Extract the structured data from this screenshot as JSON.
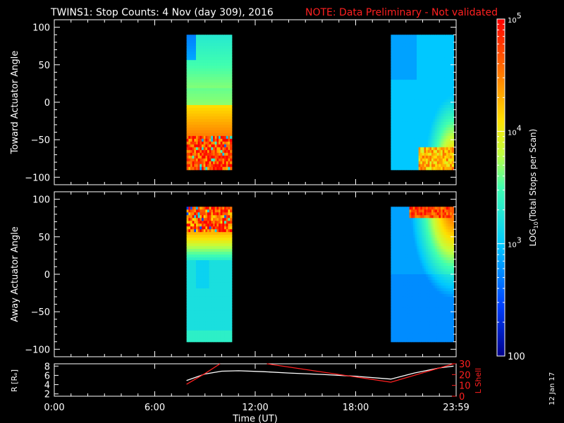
{
  "header": {
    "title": "TWINS1: Stop Counts:  4 Nov (day 309), 2016",
    "note": "NOTE: Data Preliminary - Not validated"
  },
  "side_date": "12 Jan 17",
  "colors": {
    "note": "#ff2020",
    "lshell": "#ff2020",
    "radius": "#ffffff"
  },
  "chart_data": [
    {
      "type": "heatmap",
      "ylabel": "Toward Actuator Angle",
      "ylim": [
        -110,
        110
      ],
      "yticks": [
        100,
        50,
        0,
        -50,
        -100
      ],
      "ytick_labels": [
        "100",
        "50",
        "0",
        "−50",
        "−100"
      ],
      "xlim": [
        0,
        24
      ],
      "segments": [
        {
          "x_start": 7.9,
          "x_end": 10.6
        },
        {
          "x_start": 20.1,
          "x_end": 23.85
        }
      ],
      "y_range": [
        -90,
        90
      ]
    },
    {
      "type": "heatmap",
      "ylabel": "Away Actuator Angle",
      "ylim": [
        -110,
        110
      ],
      "yticks": [
        100,
        50,
        0,
        -50,
        -100
      ],
      "ytick_labels": [
        "100",
        "50",
        "0",
        "−50",
        "−100"
      ],
      "xlim": [
        0,
        24
      ],
      "segments": [
        {
          "x_start": 7.9,
          "x_end": 10.6
        },
        {
          "x_start": 20.1,
          "x_end": 23.85
        }
      ],
      "y_range": [
        -90,
        90
      ]
    },
    {
      "type": "line",
      "ylabel_left": "R [Rₑ]",
      "ylabel_right": "L Shell",
      "xlabel": "Time (UT)",
      "xlim": [
        0,
        24
      ],
      "xticks": [
        0,
        6,
        12,
        18,
        24
      ],
      "xtick_labels": [
        "0:00",
        "6:00",
        "12:00",
        "18:00",
        "23:59"
      ],
      "ylim_left": [
        1.5,
        8.5
      ],
      "yticks_left": [
        2,
        4,
        6,
        8
      ],
      "ylim_right": [
        0,
        30
      ],
      "yticks_right": [
        0,
        10,
        20,
        30
      ],
      "series": [
        {
          "axis": "left",
          "x": [
            7.9,
            9.0,
            10.0,
            11.0,
            12.5,
            14.0,
            16.0,
            18.0,
            20.1,
            21.5,
            23.0,
            23.85
          ],
          "y": [
            4.9,
            6.3,
            6.9,
            7.0,
            6.8,
            6.5,
            6.2,
            5.8,
            5.2,
            6.5,
            7.6,
            8.0
          ]
        },
        {
          "axis": "right",
          "x": [
            7.9,
            9.0,
            9.9
          ],
          "y": [
            11,
            21,
            30
          ]
        },
        {
          "axis": "right",
          "x": [
            12.7,
            20.1,
            23.85
          ],
          "y": [
            30,
            13,
            30
          ]
        }
      ]
    },
    {
      "type": "heatmap-colorbar",
      "label_prefix": "LOG",
      "label_sub": "10",
      "label_suffix": "(Total Stops per Scan)",
      "range": [
        100,
        100000
      ],
      "tick_major": [
        {
          "v": 100000,
          "base": "10",
          "exp": "5"
        },
        {
          "v": 10000,
          "base": "10",
          "exp": "4"
        },
        {
          "v": 1000,
          "base": "10",
          "exp": "3"
        },
        {
          "v": 100,
          "base": "100",
          "exp": ""
        }
      ]
    }
  ]
}
